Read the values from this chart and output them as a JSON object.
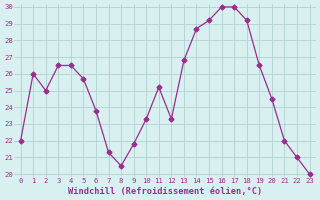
{
  "hours": [
    0,
    1,
    2,
    3,
    4,
    5,
    6,
    7,
    8,
    9,
    10,
    11,
    12,
    13,
    14,
    15,
    16,
    17,
    18,
    19,
    20,
    21,
    22,
    23
  ],
  "values": [
    22,
    26,
    25,
    26.5,
    26.5,
    25.7,
    23.8,
    21.3,
    20.5,
    21.8,
    23.3,
    25.2,
    23.3,
    26.8,
    28.7,
    29.2,
    30.0,
    30.0,
    29.2,
    26.5,
    24.5,
    22,
    21,
    20
  ],
  "line_color": "#9b2d8e",
  "marker": "D",
  "marker_size": 2.5,
  "bg_color": "#d9f0f0",
  "grid_color": "#aacccc",
  "xlabel": "Windchill (Refroidissement éolien,°C)",
  "xlabel_color": "#9b2d8e",
  "tick_color": "#9b2d8e",
  "ylim": [
    20,
    30
  ],
  "xlim": [
    -0.5,
    23.5
  ],
  "yticks": [
    20,
    21,
    22,
    23,
    24,
    25,
    26,
    27,
    28,
    29,
    30
  ],
  "xticks": [
    0,
    1,
    2,
    3,
    4,
    5,
    6,
    7,
    8,
    9,
    10,
    11,
    12,
    13,
    14,
    15,
    16,
    17,
    18,
    19,
    20,
    21,
    22,
    23
  ]
}
